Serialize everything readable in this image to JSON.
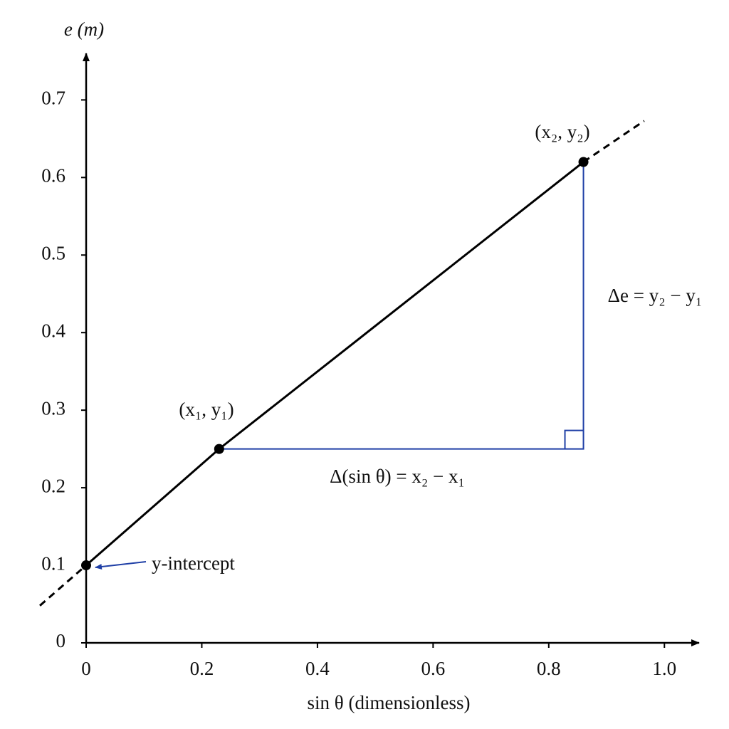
{
  "chart_data": {
    "type": "line",
    "x_label": "sin θ (dimensionless)",
    "y_label": "e (m)",
    "xlim": [
      0,
      1.06
    ],
    "ylim": [
      0,
      0.76
    ],
    "xticks": [
      0,
      0.2,
      0.4,
      0.6,
      0.8,
      {
        "value": 1,
        "label": "1.0"
      }
    ],
    "yticks": [
      0,
      0.1,
      0.2,
      0.3,
      0.4,
      0.5,
      0.6,
      0.7
    ],
    "series": [
      {
        "x": [
          0,
          0.23,
          0.86
        ],
        "values": [
          0.1,
          0.25,
          0.62
        ],
        "color": "#000000",
        "style": "solid",
        "markers": true
      },
      {
        "x": [
          -0.08,
          0
        ],
        "values": [
          0.048,
          0.1
        ],
        "color": "#000000",
        "style": "dashed"
      },
      {
        "x": [
          0.86,
          0.965
        ],
        "values": [
          0.62,
          0.673
        ],
        "color": "#000000",
        "style": "dashed"
      }
    ],
    "annotation_color": "#1f3fa6",
    "annotations": [
      "(x₁, y₁)",
      "(x₂, y₂)",
      "Δe = y₂ − y₁",
      "Δ(sin θ) = x₂ − x₁",
      "y-intercept"
    ]
  }
}
